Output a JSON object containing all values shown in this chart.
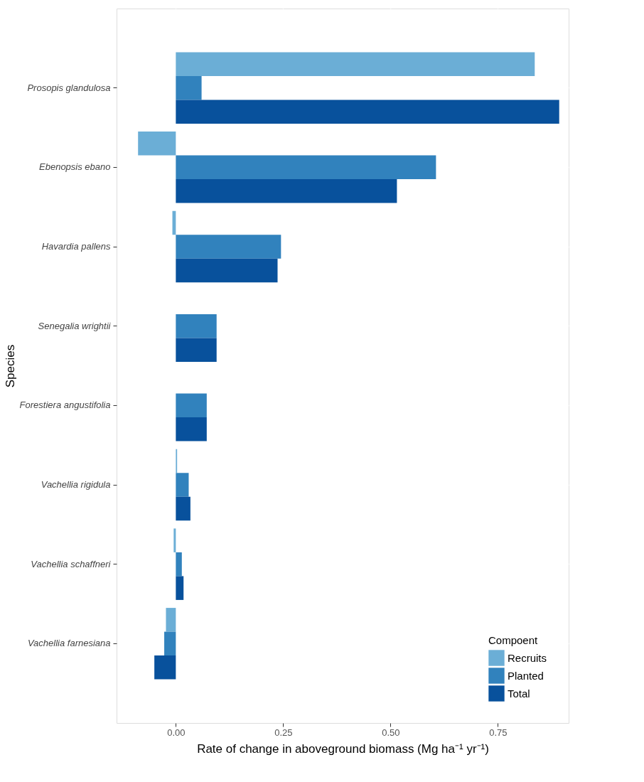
{
  "chart_data": {
    "type": "bar",
    "orientation": "horizontal",
    "xlabel": "Rate of change in aboveground biomass (Mg ha⁻¹ yr⁻¹)",
    "ylabel": "Species",
    "legend_title": "Compoent",
    "legend": "bottom right",
    "grid": true,
    "categories": [
      "Prosopis glandulosa",
      "Ebenopsis ebano",
      "Havardia pallens",
      "Senegalia wrightii",
      "Forestiera angustifolia",
      "Vachellia rigidula",
      "Vachellia schaffneri",
      "Vachellia farnesiana"
    ],
    "xlim": [
      -0.138,
      0.915
    ],
    "xticks": [
      {
        "value": 0,
        "label": "0.00"
      },
      {
        "value": 0.25,
        "label": "0.25"
      },
      {
        "value": 0.5,
        "label": "0.50"
      },
      {
        "value": 0.75,
        "label": "0.75"
      }
    ],
    "series": [
      {
        "name": "Recruits",
        "color": "#6baed6",
        "values": [
          0.836,
          -0.088,
          -0.008,
          0,
          0,
          0.003,
          -0.005,
          -0.023
        ]
      },
      {
        "name": "Planted",
        "color": "#3182bd",
        "values": [
          0.06,
          0.606,
          0.245,
          0.095,
          0.072,
          0.03,
          0.014,
          -0.027
        ]
      },
      {
        "name": "Total",
        "color": "#08519c",
        "values": [
          0.893,
          0.515,
          0.237,
          0.095,
          0.072,
          0.034,
          0.018,
          -0.05
        ]
      }
    ]
  }
}
